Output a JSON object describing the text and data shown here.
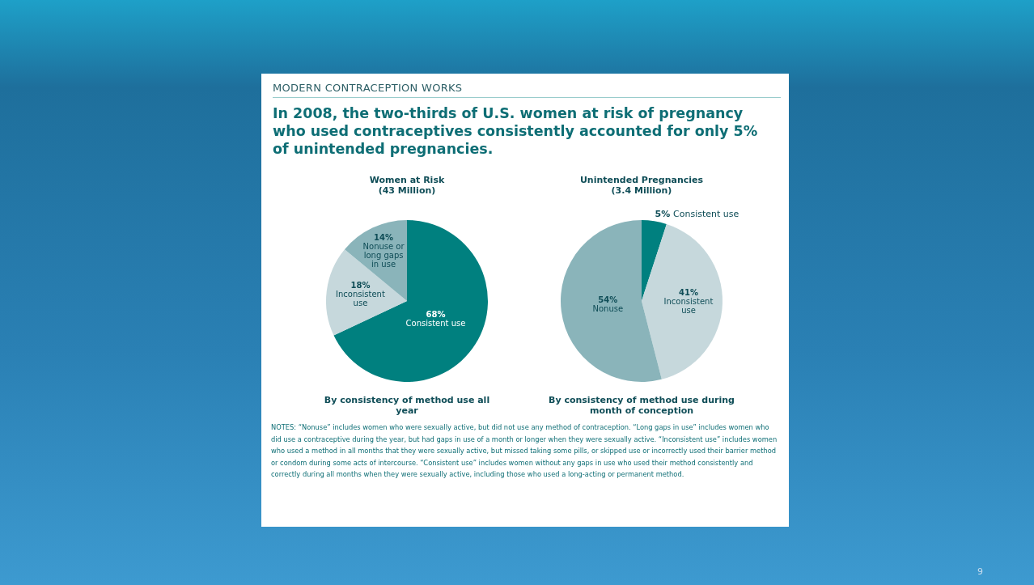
{
  "chart_data": [
    {
      "type": "other",
      "title": "MODERN CONTRACEPTION WORKS",
      "subtitle": "In 2008, the two-thirds of U.S. women at risk of pregnancy who used contraceptives consistently accounted for only 5% of unintended pregnancies.",
      "annotations": [
        "NOTES: “Nonuse” includes women who were sexually active, but did not use any method of contraception. “Long gaps in use” includes women who did use a contraceptive during the year, but had gaps in use of a month or longer when they were sexually active. “Inconsistent use” includes women who used a method in all months that they were sexually active, but  missed taking some pills, or skipped use or incorrectly used their barrier method or condom during some acts of intercourse. “Consistent use” includes women without any gaps in use who used their method consistently and correctly during all months when they were sexually active, including those who used a long-acting or permanent method.",
        "9"
      ]
    },
    {
      "type": "pie",
      "title": "Women at Risk\n(43 Million)",
      "categories": [
        "Consistent use",
        "Inconsistent use",
        "Nonuse or long gaps in use"
      ],
      "values": [
        68,
        18,
        14
      ],
      "value_labels": [
        "68%",
        "18%",
        "14%"
      ],
      "colors": [
        "#00807f",
        "#c6d8dc",
        "#8ab4ba"
      ],
      "annotations": [
        "By consistency of method use all year"
      ]
    },
    {
      "type": "pie",
      "title": "Unintended Pregnancies\n(3.4 Million)",
      "categories": [
        "Consistent use",
        "Inconsistent use",
        "Nonuse"
      ],
      "values": [
        5,
        41,
        54
      ],
      "value_labels": [
        "5%",
        "41%",
        "54%"
      ],
      "colors": [
        "#00807f",
        "#c6d8dc",
        "#8ab4ba"
      ],
      "annotations": [
        "By consistency of method use during month of conception"
      ]
    }
  ]
}
